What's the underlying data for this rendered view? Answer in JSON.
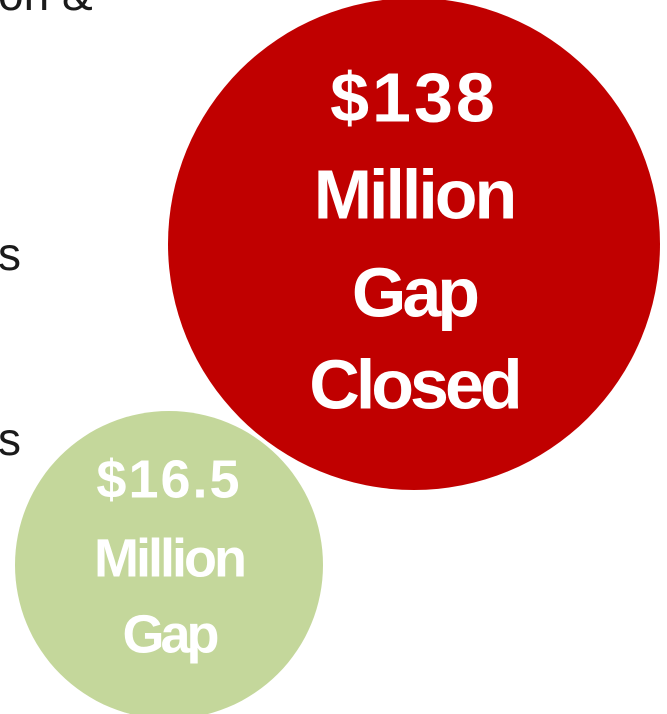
{
  "text_fragments": [
    "on &",
    "s",
    "s"
  ],
  "bubbles": [
    {
      "color": "#c00000",
      "lines": [
        "$138",
        "Million",
        "Gap",
        "Closed"
      ]
    },
    {
      "color": "#c4d79b",
      "lines": [
        "$16.5",
        "Million",
        "Gap"
      ]
    }
  ]
}
